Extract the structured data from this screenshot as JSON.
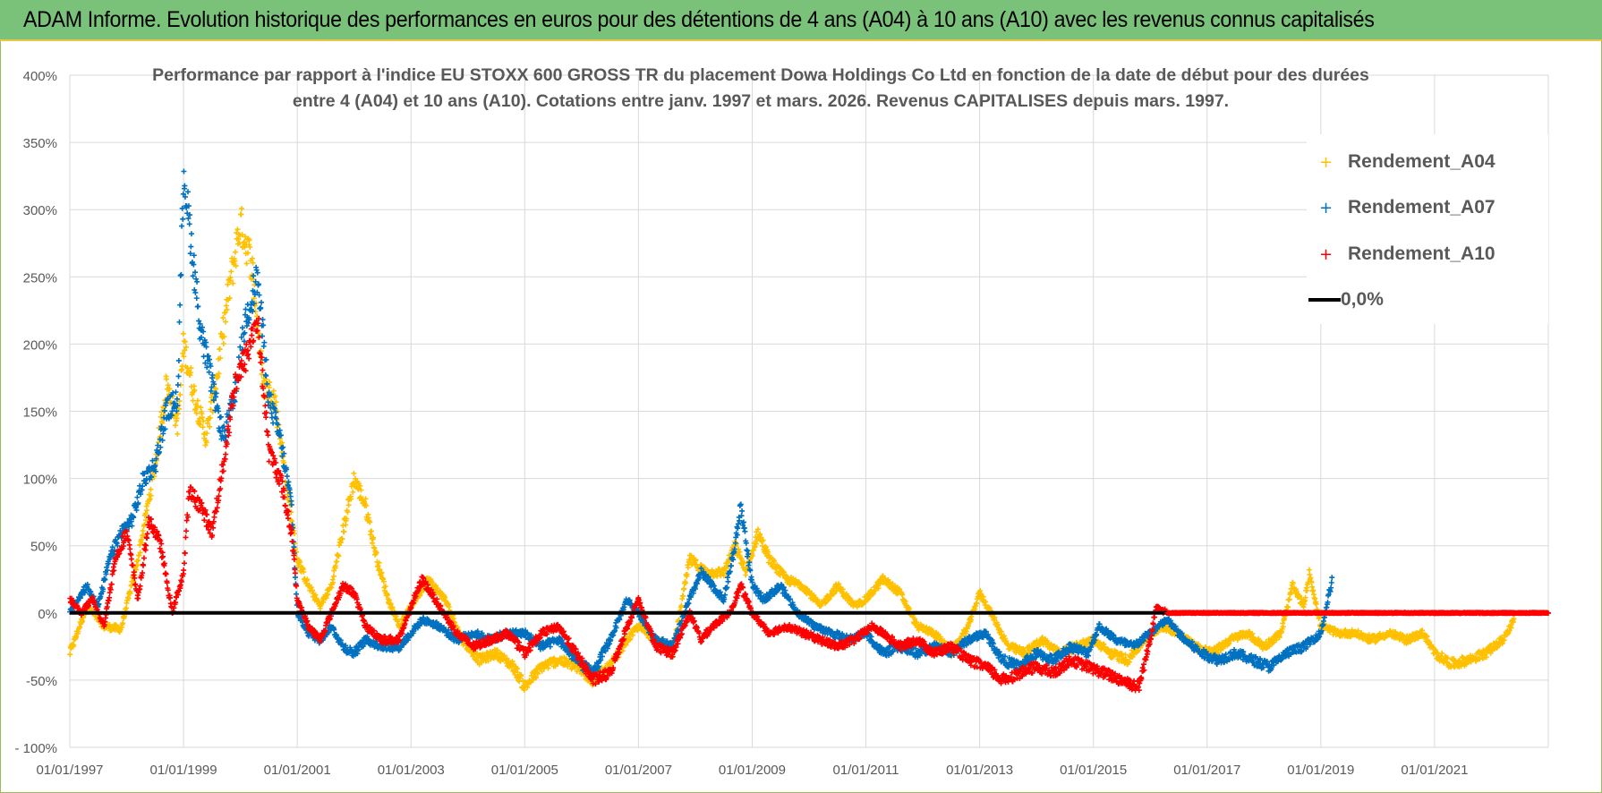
{
  "banner": {
    "title": "ADAM Informe. Evolution historique des performances en euros pour des détentions de 4 ans (A04) à 10 ans (A10) avec les revenus connus capitalisés",
    "color": "#7ac27a"
  },
  "chart_data": {
    "type": "scatter",
    "title_line1": "Performance par rapport à l'indice EU STOXX 600 GROSS TR  du placement Dowa Holdings Co Ltd en fonction de la date de début pour des durées",
    "title_line2": "entre 4 (A04) et 10 ans (A10).  Cotations entre janv. 1997 et mars. 2026.  Revenus CAPITALISES depuis mars. 1997.",
    "xlabel": "",
    "ylabel": "",
    "x_range_years": [
      1997.0,
      2023.0
    ],
    "ylim": [
      -100,
      400
    ],
    "y_ticks": [
      -100,
      -50,
      0,
      50,
      100,
      150,
      200,
      250,
      300,
      350,
      400
    ],
    "y_tick_labels": [
      "- 100%",
      "-50%",
      "0%",
      "50%",
      "100%",
      "150%",
      "200%",
      "250%",
      "300%",
      "350%",
      "400%"
    ],
    "x_ticks": [
      1997,
      1999,
      2001,
      2003,
      2005,
      2007,
      2009,
      2011,
      2013,
      2015,
      2017,
      2019,
      2021
    ],
    "x_tick_labels": [
      "01/01/1997",
      "01/01/1999",
      "01/01/2001",
      "01/01/2003",
      "01/01/2005",
      "01/01/2007",
      "01/01/2009",
      "01/01/2011",
      "01/01/2013",
      "01/01/2015",
      "01/01/2017",
      "01/01/2019",
      "01/01/2021"
    ],
    "grid": true,
    "legend_position": "top-right",
    "reference_line": {
      "name": "0,0%",
      "value": 0,
      "color": "#000000"
    },
    "series": [
      {
        "name": "Rendement_A04",
        "color": "#ffc000",
        "x_end": 2022.4,
        "points": [
          [
            1997.0,
            -30
          ],
          [
            1997.3,
            5
          ],
          [
            1997.6,
            -10
          ],
          [
            1997.9,
            -12
          ],
          [
            1998.2,
            40
          ],
          [
            1998.5,
            110
          ],
          [
            1998.7,
            170
          ],
          [
            1998.9,
            140
          ],
          [
            1999.0,
            200
          ],
          [
            1999.2,
            160
          ],
          [
            1999.4,
            130
          ],
          [
            1999.6,
            180
          ],
          [
            1999.8,
            240
          ],
          [
            2000.0,
            290
          ],
          [
            2000.2,
            260
          ],
          [
            2000.4,
            170
          ],
          [
            2000.6,
            160
          ],
          [
            2000.8,
            100
          ],
          [
            2001.0,
            40
          ],
          [
            2001.2,
            20
          ],
          [
            2001.4,
            5
          ],
          [
            2001.6,
            20
          ],
          [
            2001.8,
            60
          ],
          [
            2002.0,
            100
          ],
          [
            2002.2,
            80
          ],
          [
            2002.4,
            40
          ],
          [
            2002.6,
            10
          ],
          [
            2002.8,
            -10
          ],
          [
            2003.0,
            5
          ],
          [
            2003.3,
            25
          ],
          [
            2003.6,
            10
          ],
          [
            2003.9,
            -20
          ],
          [
            2004.2,
            -35
          ],
          [
            2004.5,
            -30
          ],
          [
            2004.8,
            -40
          ],
          [
            2005.0,
            -55
          ],
          [
            2005.3,
            -40
          ],
          [
            2005.6,
            -35
          ],
          [
            2005.9,
            -40
          ],
          [
            2006.2,
            -50
          ],
          [
            2006.5,
            -40
          ],
          [
            2006.8,
            -20
          ],
          [
            2007.0,
            -10
          ],
          [
            2007.3,
            -20
          ],
          [
            2007.6,
            -30
          ],
          [
            2007.9,
            40
          ],
          [
            2008.2,
            30
          ],
          [
            2008.5,
            30
          ],
          [
            2008.7,
            50
          ],
          [
            2008.9,
            30
          ],
          [
            2009.1,
            60
          ],
          [
            2009.3,
            40
          ],
          [
            2009.6,
            25
          ],
          [
            2009.9,
            20
          ],
          [
            2010.2,
            5
          ],
          [
            2010.5,
            20
          ],
          [
            2010.8,
            5
          ],
          [
            2011.0,
            10
          ],
          [
            2011.3,
            25
          ],
          [
            2011.6,
            15
          ],
          [
            2011.9,
            -10
          ],
          [
            2012.2,
            -15
          ],
          [
            2012.5,
            -30
          ],
          [
            2012.8,
            -10
          ],
          [
            2013.0,
            15
          ],
          [
            2013.2,
            0
          ],
          [
            2013.5,
            -25
          ],
          [
            2013.8,
            -30
          ],
          [
            2014.1,
            -20
          ],
          [
            2014.4,
            -30
          ],
          [
            2014.7,
            -25
          ],
          [
            2015.0,
            -20
          ],
          [
            2015.3,
            -30
          ],
          [
            2015.6,
            -35
          ],
          [
            2015.9,
            -20
          ],
          [
            2016.2,
            -10
          ],
          [
            2016.5,
            -15
          ],
          [
            2016.8,
            -25
          ],
          [
            2017.1,
            -30
          ],
          [
            2017.4,
            -20
          ],
          [
            2017.7,
            -15
          ],
          [
            2018.0,
            -25
          ],
          [
            2018.3,
            -15
          ],
          [
            2018.5,
            20
          ],
          [
            2018.7,
            5
          ],
          [
            2018.8,
            30
          ],
          [
            2019.0,
            -10
          ],
          [
            2019.3,
            -15
          ],
          [
            2019.6,
            -15
          ],
          [
            2019.9,
            -20
          ],
          [
            2020.2,
            -15
          ],
          [
            2020.5,
            -20
          ],
          [
            2020.8,
            -15
          ],
          [
            2021.0,
            -30
          ],
          [
            2021.3,
            -38
          ],
          [
            2021.6,
            -35
          ],
          [
            2021.9,
            -30
          ],
          [
            2022.2,
            -20
          ],
          [
            2022.4,
            -5
          ]
        ]
      },
      {
        "name": "Rendement_A07",
        "color": "#0070c0",
        "x_end": 2019.2,
        "points": [
          [
            1997.0,
            0
          ],
          [
            1997.3,
            20
          ],
          [
            1997.5,
            5
          ],
          [
            1997.7,
            40
          ],
          [
            1997.9,
            60
          ],
          [
            1998.1,
            70
          ],
          [
            1998.3,
            100
          ],
          [
            1998.5,
            110
          ],
          [
            1998.7,
            150
          ],
          [
            1998.9,
            160
          ],
          [
            1999.0,
            330
          ],
          [
            1999.1,
            290
          ],
          [
            1999.3,
            210
          ],
          [
            1999.5,
            170
          ],
          [
            1999.7,
            130
          ],
          [
            1999.9,
            160
          ],
          [
            2000.1,
            220
          ],
          [
            2000.3,
            250
          ],
          [
            2000.5,
            160
          ],
          [
            2000.7,
            130
          ],
          [
            2000.9,
            80
          ],
          [
            2001.0,
            0
          ],
          [
            2001.2,
            -15
          ],
          [
            2001.4,
            -20
          ],
          [
            2001.6,
            -10
          ],
          [
            2001.8,
            -25
          ],
          [
            2002.0,
            -30
          ],
          [
            2002.2,
            -20
          ],
          [
            2002.5,
            -25
          ],
          [
            2002.8,
            -25
          ],
          [
            2003.0,
            -15
          ],
          [
            2003.2,
            -5
          ],
          [
            2003.5,
            -10
          ],
          [
            2003.8,
            -20
          ],
          [
            2004.1,
            -15
          ],
          [
            2004.4,
            -20
          ],
          [
            2004.7,
            -15
          ],
          [
            2005.0,
            -15
          ],
          [
            2005.3,
            -25
          ],
          [
            2005.6,
            -20
          ],
          [
            2005.9,
            -35
          ],
          [
            2006.2,
            -45
          ],
          [
            2006.5,
            -20
          ],
          [
            2006.8,
            10
          ],
          [
            2007.0,
            0
          ],
          [
            2007.3,
            -20
          ],
          [
            2007.6,
            -25
          ],
          [
            2007.9,
            10
          ],
          [
            2008.1,
            30
          ],
          [
            2008.3,
            20
          ],
          [
            2008.5,
            10
          ],
          [
            2008.7,
            50
          ],
          [
            2008.8,
            80
          ],
          [
            2009.0,
            20
          ],
          [
            2009.2,
            10
          ],
          [
            2009.5,
            20
          ],
          [
            2009.8,
            0
          ],
          [
            2010.1,
            -10
          ],
          [
            2010.4,
            -15
          ],
          [
            2010.7,
            -20
          ],
          [
            2011.0,
            -15
          ],
          [
            2011.3,
            -30
          ],
          [
            2011.6,
            -25
          ],
          [
            2011.9,
            -30
          ],
          [
            2012.2,
            -25
          ],
          [
            2012.5,
            -30
          ],
          [
            2012.8,
            -20
          ],
          [
            2013.1,
            -15
          ],
          [
            2013.4,
            -35
          ],
          [
            2013.7,
            -40
          ],
          [
            2014.0,
            -30
          ],
          [
            2014.3,
            -35
          ],
          [
            2014.6,
            -25
          ],
          [
            2014.9,
            -30
          ],
          [
            2015.1,
            -10
          ],
          [
            2015.4,
            -20
          ],
          [
            2015.7,
            -25
          ],
          [
            2016.0,
            -15
          ],
          [
            2016.3,
            -5
          ],
          [
            2016.6,
            -20
          ],
          [
            2016.9,
            -30
          ],
          [
            2017.2,
            -35
          ],
          [
            2017.5,
            -30
          ],
          [
            2017.8,
            -35
          ],
          [
            2018.1,
            -40
          ],
          [
            2018.4,
            -30
          ],
          [
            2018.7,
            -25
          ],
          [
            2019.0,
            -15
          ],
          [
            2019.2,
            25
          ]
        ]
      },
      {
        "name": "Rendement_A10",
        "color": "#ff0000",
        "x_end": 2023.0,
        "points": [
          [
            1997.0,
            10
          ],
          [
            1997.2,
            0
          ],
          [
            1997.4,
            10
          ],
          [
            1997.6,
            -10
          ],
          [
            1997.8,
            40
          ],
          [
            1998.0,
            60
          ],
          [
            1998.2,
            10
          ],
          [
            1998.4,
            70
          ],
          [
            1998.6,
            50
          ],
          [
            1998.8,
            0
          ],
          [
            1999.0,
            30
          ],
          [
            1999.1,
            90
          ],
          [
            1999.3,
            80
          ],
          [
            1999.5,
            60
          ],
          [
            1999.7,
            110
          ],
          [
            1999.9,
            170
          ],
          [
            2000.1,
            190
          ],
          [
            2000.3,
            220
          ],
          [
            2000.5,
            120
          ],
          [
            2000.7,
            100
          ],
          [
            2000.9,
            60
          ],
          [
            2001.0,
            10
          ],
          [
            2001.2,
            -10
          ],
          [
            2001.4,
            -20
          ],
          [
            2001.6,
            0
          ],
          [
            2001.8,
            20
          ],
          [
            2002.0,
            15
          ],
          [
            2002.2,
            -10
          ],
          [
            2002.5,
            -20
          ],
          [
            2002.8,
            -20
          ],
          [
            2003.0,
            5
          ],
          [
            2003.2,
            25
          ],
          [
            2003.5,
            5
          ],
          [
            2003.8,
            -15
          ],
          [
            2004.1,
            -25
          ],
          [
            2004.4,
            -20
          ],
          [
            2004.7,
            -15
          ],
          [
            2005.0,
            -30
          ],
          [
            2005.3,
            -15
          ],
          [
            2005.6,
            -10
          ],
          [
            2005.9,
            -30
          ],
          [
            2006.2,
            -50
          ],
          [
            2006.5,
            -45
          ],
          [
            2006.8,
            -10
          ],
          [
            2007.0,
            10
          ],
          [
            2007.3,
            -25
          ],
          [
            2007.6,
            -30
          ],
          [
            2007.9,
            0
          ],
          [
            2008.1,
            -20
          ],
          [
            2008.3,
            -10
          ],
          [
            2008.6,
            0
          ],
          [
            2008.8,
            20
          ],
          [
            2009.0,
            0
          ],
          [
            2009.3,
            -15
          ],
          [
            2009.6,
            -10
          ],
          [
            2009.9,
            -15
          ],
          [
            2010.2,
            -20
          ],
          [
            2010.5,
            -25
          ],
          [
            2010.8,
            -20
          ],
          [
            2011.1,
            -10
          ],
          [
            2011.3,
            -15
          ],
          [
            2011.6,
            -25
          ],
          [
            2011.9,
            -20
          ],
          [
            2012.2,
            -30
          ],
          [
            2012.5,
            -25
          ],
          [
            2012.8,
            -35
          ],
          [
            2013.1,
            -40
          ],
          [
            2013.4,
            -50
          ],
          [
            2013.7,
            -45
          ],
          [
            2014.0,
            -40
          ],
          [
            2014.3,
            -45
          ],
          [
            2014.6,
            -35
          ],
          [
            2014.9,
            -40
          ],
          [
            2015.2,
            -45
          ],
          [
            2015.5,
            -50
          ],
          [
            2015.8,
            -55
          ],
          [
            2016.0,
            -20
          ],
          [
            2016.1,
            5
          ],
          [
            2016.3,
            0
          ],
          [
            2017.0,
            0
          ],
          [
            2018.0,
            0
          ],
          [
            2019.0,
            0
          ],
          [
            2020.0,
            0
          ],
          [
            2021.0,
            0
          ],
          [
            2022.0,
            0
          ],
          [
            2023.0,
            0
          ]
        ]
      }
    ]
  }
}
